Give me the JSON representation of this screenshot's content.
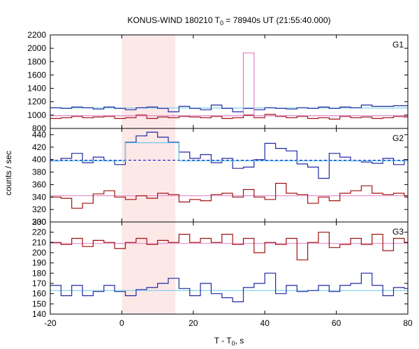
{
  "chart_data": {
    "type": "line",
    "title": "KONUS-WIND 180210 T₀ = 78940s UT (21:55:40.000)",
    "title_parts": {
      "before_sub": "KONUS-WIND 180210 T",
      "sub": "0",
      "after_sub": " = 78940s UT (21:55:40.000)"
    },
    "xlabel": "T - T₀, s",
    "xlabel_parts": {
      "before_sub": "T - T",
      "sub": "0",
      "after_sub": ", s"
    },
    "ylabel": "counts / sec",
    "xlim": [
      -20,
      80
    ],
    "x_ticks": [
      -20,
      0,
      20,
      40,
      60,
      80
    ],
    "shaded_interval": {
      "x": [
        0,
        15
      ],
      "color": "#fde8e8"
    },
    "colors": {
      "blue": "#1f2aa0",
      "red": "#a01010",
      "cyan": "#66c8e6",
      "pink": "#e080c8",
      "darkblue": "#0000cc"
    },
    "step_x": [
      -20,
      -17,
      -14,
      -11,
      -8,
      -5,
      -2,
      1,
      4,
      7,
      10,
      13,
      16,
      19,
      22,
      25,
      28,
      31,
      34,
      37,
      40,
      43,
      46,
      49,
      52,
      55,
      58,
      61,
      64,
      67,
      70,
      73,
      76,
      79,
      80
    ],
    "panels": [
      {
        "label": "G1",
        "ylim": [
          800,
          2200
        ],
        "y_ticks": [
          800,
          1000,
          1200,
          1400,
          1600,
          1800,
          2000,
          2200
        ],
        "series": [
          {
            "color": "blue",
            "values": [
              1110,
              1100,
              1120,
              1110,
              1090,
              1120,
              1100,
              1080,
              1110,
              1120,
              1100,
              1050,
              1130,
              1100,
              1080,
              1150,
              1100,
              1050,
              1100,
              1080,
              1110,
              1100,
              1090,
              1110,
              1100,
              1120,
              1100,
              1120,
              1110,
              1150,
              1130,
              1130,
              1140,
              1140
            ]
          },
          {
            "color": "red",
            "values": [
              950,
              960,
              980,
              960,
              970,
              980,
              950,
              960,
              1000,
              950,
              970,
              960,
              980,
              970,
              960,
              980,
              950,
              960,
              1000,
              960,
              1010,
              980,
              960,
              980,
              950,
              960,
              940,
              980,
              960,
              970,
              950,
              960,
              980,
              970
            ]
          },
          {
            "color": "pink",
            "values": [
              990,
              990,
              990,
              990,
              990,
              990,
              990,
              990,
              990,
              990,
              990,
              990,
              990,
              990,
              990,
              990,
              990,
              990,
              1930,
              990,
              990,
              990,
              990,
              990,
              990,
              990,
              990,
              990,
              990,
              990,
              990,
              990,
              990,
              990
            ]
          }
        ],
        "fit_lines": [
          {
            "color": "cyan",
            "y": 1105,
            "style": "solid"
          },
          {
            "color": "pink",
            "y": 990,
            "style": "solid"
          }
        ]
      },
      {
        "label": "G2",
        "ylim": [
          300,
          450
        ],
        "y_ticks": [
          300,
          320,
          340,
          360,
          380,
          400,
          420,
          440
        ],
        "series": [
          {
            "color": "blue",
            "values": [
              398,
              402,
              410,
              395,
              404,
              398,
              392,
              428,
              438,
              444,
              436,
              428,
              412,
              402,
              408,
              395,
              402,
              386,
              388,
              400,
              426,
              418,
              414,
              393,
              388,
              370,
              410,
              404,
              398,
              396,
              394,
              402,
              392,
              400
            ]
          },
          {
            "color": "red",
            "values": [
              340,
              338,
              322,
              330,
              345,
              350,
              340,
              336,
              342,
              338,
              346,
              344,
              332,
              336,
              334,
              344,
              346,
              340,
              352,
              340,
              336,
              362,
              346,
              344,
              330,
              340,
              334,
              346,
              350,
              358,
              346,
              344,
              346,
              342
            ]
          },
          {
            "color": "cyan",
            "values": [
              398,
              398,
              398,
              398,
              398,
              398,
              398,
              427,
              427,
              427,
              427,
              427,
              398,
              398,
              398,
              398,
              398,
              398,
              398,
              398,
              398,
              398,
              398,
              398,
              398,
              398,
              398,
              398,
              398,
              398,
              398,
              398,
              398,
              398
            ]
          }
        ],
        "fit_lines": [
          {
            "color": "darkblue",
            "y": 399,
            "style": "dashed"
          },
          {
            "color": "pink",
            "y": 342,
            "style": "solid"
          }
        ]
      },
      {
        "label": "G3",
        "ylim": [
          140,
          230
        ],
        "y_ticks": [
          140,
          150,
          160,
          170,
          180,
          190,
          200,
          210,
          220,
          230
        ],
        "series": [
          {
            "color": "blue",
            "values": [
              168,
              158,
              168,
              158,
              162,
              168,
              162,
              158,
              164,
              166,
              170,
              175,
              165,
              158,
              170,
              160,
              156,
              152,
              166,
              170,
              180,
              160,
              168,
              162,
              163,
              168,
              162,
              168,
              170,
              180,
              168,
              158,
              166,
              165
            ]
          },
          {
            "color": "red",
            "values": [
              210,
              208,
              214,
              206,
              212,
              210,
              204,
              210,
              214,
              208,
              212,
              210,
              218,
              210,
              214,
              210,
              218,
              208,
              214,
              200,
              210,
              208,
              214,
              193,
              210,
              220,
              205,
              208,
              214,
              208,
              218,
              202,
              214,
              210
            ]
          }
        ],
        "fit_lines": [
          {
            "color": "cyan",
            "y": 163,
            "style": "solid"
          },
          {
            "color": "pink",
            "y": 209,
            "style": "solid"
          }
        ]
      }
    ]
  }
}
